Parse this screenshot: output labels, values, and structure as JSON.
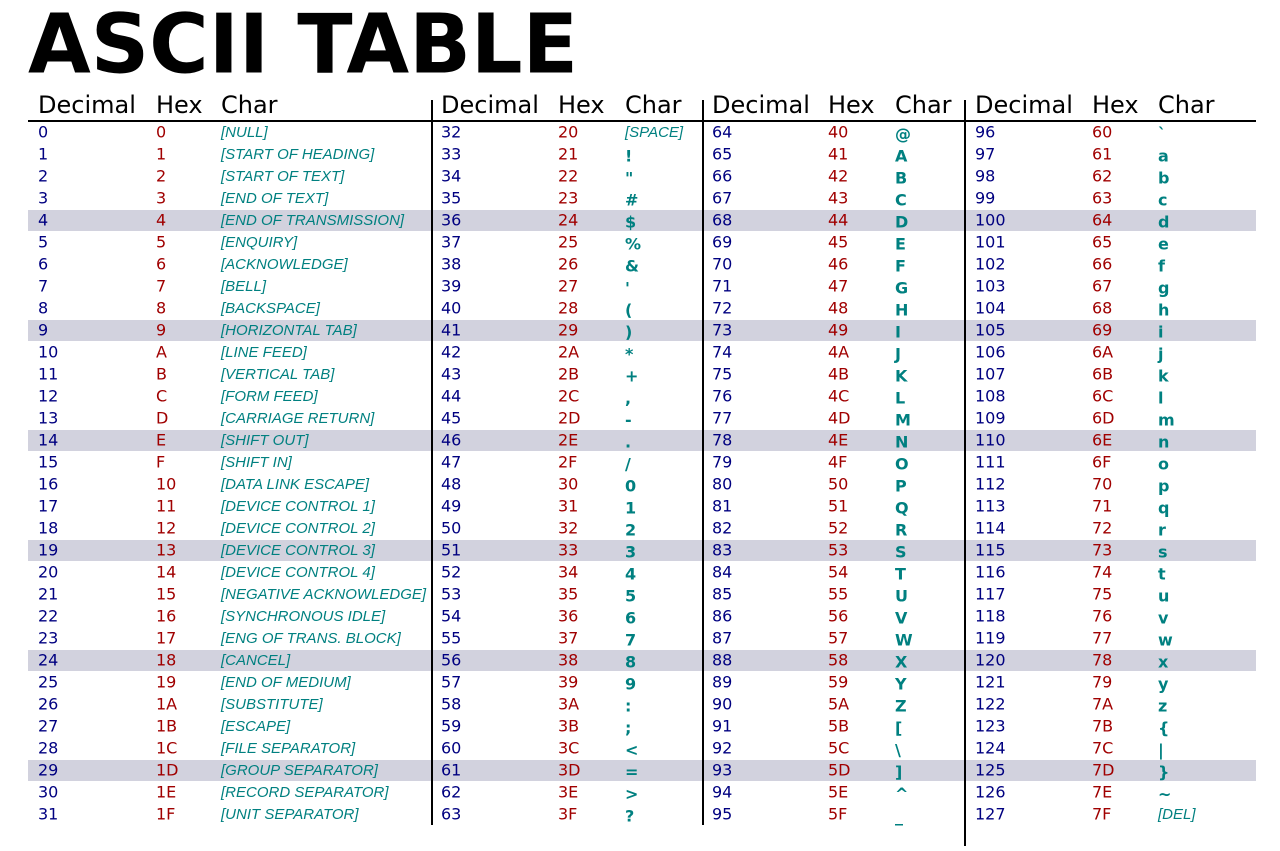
{
  "title": "ASCII TABLE",
  "table": {
    "headers": [
      "Decimal",
      "Hex",
      "Char"
    ],
    "rows": [
      [
        0,
        "0",
        "[NULL]"
      ],
      [
        1,
        "1",
        "[START OF HEADING]"
      ],
      [
        2,
        "2",
        "[START OF TEXT]"
      ],
      [
        3,
        "3",
        "[END OF TEXT]"
      ],
      [
        4,
        "4",
        "[END OF TRANSMISSION]"
      ],
      [
        5,
        "5",
        "[ENQUIRY]"
      ],
      [
        6,
        "6",
        "[ACKNOWLEDGE]"
      ],
      [
        7,
        "7",
        "[BELL]"
      ],
      [
        8,
        "8",
        "[BACKSPACE]"
      ],
      [
        9,
        "9",
        "[HORIZONTAL TAB]"
      ],
      [
        10,
        "A",
        "[LINE FEED]"
      ],
      [
        11,
        "B",
        "[VERTICAL TAB]"
      ],
      [
        12,
        "C",
        "[FORM FEED]"
      ],
      [
        13,
        "D",
        "[CARRIAGE RETURN]"
      ],
      [
        14,
        "E",
        "[SHIFT OUT]"
      ],
      [
        15,
        "F",
        "[SHIFT IN]"
      ],
      [
        16,
        "10",
        "[DATA LINK ESCAPE]"
      ],
      [
        17,
        "11",
        "[DEVICE CONTROL 1]"
      ],
      [
        18,
        "12",
        "[DEVICE CONTROL 2]"
      ],
      [
        19,
        "13",
        "[DEVICE CONTROL 3]"
      ],
      [
        20,
        "14",
        "[DEVICE CONTROL 4]"
      ],
      [
        21,
        "15",
        "[NEGATIVE ACKNOWLEDGE]"
      ],
      [
        22,
        "16",
        "[SYNCHRONOUS IDLE]"
      ],
      [
        23,
        "17",
        "[ENG OF TRANS. BLOCK]"
      ],
      [
        24,
        "18",
        "[CANCEL]"
      ],
      [
        25,
        "19",
        "[END OF MEDIUM]"
      ],
      [
        26,
        "1A",
        "[SUBSTITUTE]"
      ],
      [
        27,
        "1B",
        "[ESCAPE]"
      ],
      [
        28,
        "1C",
        "[FILE SEPARATOR]"
      ],
      [
        29,
        "1D",
        "[GROUP SEPARATOR]"
      ],
      [
        30,
        "1E",
        "[RECORD SEPARATOR]"
      ],
      [
        31,
        "1F",
        "[UNIT SEPARATOR]"
      ],
      [
        32,
        "20",
        "[SPACE]"
      ],
      [
        33,
        "21",
        "!"
      ],
      [
        34,
        "22",
        "\""
      ],
      [
        35,
        "23",
        "#"
      ],
      [
        36,
        "24",
        "$"
      ],
      [
        37,
        "25",
        "%"
      ],
      [
        38,
        "26",
        "&"
      ],
      [
        39,
        "27",
        "'"
      ],
      [
        40,
        "28",
        "("
      ],
      [
        41,
        "29",
        ")"
      ],
      [
        42,
        "2A",
        "*"
      ],
      [
        43,
        "2B",
        "+"
      ],
      [
        44,
        "2C",
        ","
      ],
      [
        45,
        "2D",
        "-"
      ],
      [
        46,
        "2E",
        "."
      ],
      [
        47,
        "2F",
        "/"
      ],
      [
        48,
        "30",
        "0"
      ],
      [
        49,
        "31",
        "1"
      ],
      [
        50,
        "32",
        "2"
      ],
      [
        51,
        "33",
        "3"
      ],
      [
        52,
        "34",
        "4"
      ],
      [
        53,
        "35",
        "5"
      ],
      [
        54,
        "36",
        "6"
      ],
      [
        55,
        "37",
        "7"
      ],
      [
        56,
        "38",
        "8"
      ],
      [
        57,
        "39",
        "9"
      ],
      [
        58,
        "3A",
        ":"
      ],
      [
        59,
        "3B",
        ";"
      ],
      [
        60,
        "3C",
        "<"
      ],
      [
        61,
        "3D",
        "="
      ],
      [
        62,
        "3E",
        ">"
      ],
      [
        63,
        "3F",
        "?"
      ],
      [
        64,
        "40",
        "@"
      ],
      [
        65,
        "41",
        "A"
      ],
      [
        66,
        "42",
        "B"
      ],
      [
        67,
        "43",
        "C"
      ],
      [
        68,
        "44",
        "D"
      ],
      [
        69,
        "45",
        "E"
      ],
      [
        70,
        "46",
        "F"
      ],
      [
        71,
        "47",
        "G"
      ],
      [
        72,
        "48",
        "H"
      ],
      [
        73,
        "49",
        "I"
      ],
      [
        74,
        "4A",
        "J"
      ],
      [
        75,
        "4B",
        "K"
      ],
      [
        76,
        "4C",
        "L"
      ],
      [
        77,
        "4D",
        "M"
      ],
      [
        78,
        "4E",
        "N"
      ],
      [
        79,
        "4F",
        "O"
      ],
      [
        80,
        "50",
        "P"
      ],
      [
        81,
        "51",
        "Q"
      ],
      [
        82,
        "52",
        "R"
      ],
      [
        83,
        "53",
        "S"
      ],
      [
        84,
        "54",
        "T"
      ],
      [
        85,
        "55",
        "U"
      ],
      [
        86,
        "56",
        "V"
      ],
      [
        87,
        "57",
        "W"
      ],
      [
        88,
        "58",
        "X"
      ],
      [
        89,
        "59",
        "Y"
      ],
      [
        90,
        "5A",
        "Z"
      ],
      [
        91,
        "5B",
        "["
      ],
      [
        92,
        "5C",
        "\\"
      ],
      [
        93,
        "5D",
        "]"
      ],
      [
        94,
        "5E",
        "^"
      ],
      [
        95,
        "5F",
        "_"
      ],
      [
        96,
        "60",
        "`"
      ],
      [
        97,
        "61",
        "a"
      ],
      [
        98,
        "62",
        "b"
      ],
      [
        99,
        "63",
        "c"
      ],
      [
        100,
        "64",
        "d"
      ],
      [
        101,
        "65",
        "e"
      ],
      [
        102,
        "66",
        "f"
      ],
      [
        103,
        "67",
        "g"
      ],
      [
        104,
        "68",
        "h"
      ],
      [
        105,
        "69",
        "i"
      ],
      [
        106,
        "6A",
        "j"
      ],
      [
        107,
        "6B",
        "k"
      ],
      [
        108,
        "6C",
        "l"
      ],
      [
        109,
        "6D",
        "m"
      ],
      [
        110,
        "6E",
        "n"
      ],
      [
        111,
        "6F",
        "o"
      ],
      [
        112,
        "70",
        "p"
      ],
      [
        113,
        "71",
        "q"
      ],
      [
        114,
        "72",
        "r"
      ],
      [
        115,
        "73",
        "s"
      ],
      [
        116,
        "74",
        "t"
      ],
      [
        117,
        "75",
        "u"
      ],
      [
        118,
        "76",
        "v"
      ],
      [
        119,
        "77",
        "w"
      ],
      [
        120,
        "78",
        "x"
      ],
      [
        121,
        "79",
        "y"
      ],
      [
        122,
        "7A",
        "z"
      ],
      [
        123,
        "7B",
        "{"
      ],
      [
        124,
        "7C",
        "|"
      ],
      [
        125,
        "7D",
        "}"
      ],
      [
        126,
        "7E",
        "~"
      ],
      [
        127,
        "7F",
        "[DEL]"
      ]
    ]
  }
}
